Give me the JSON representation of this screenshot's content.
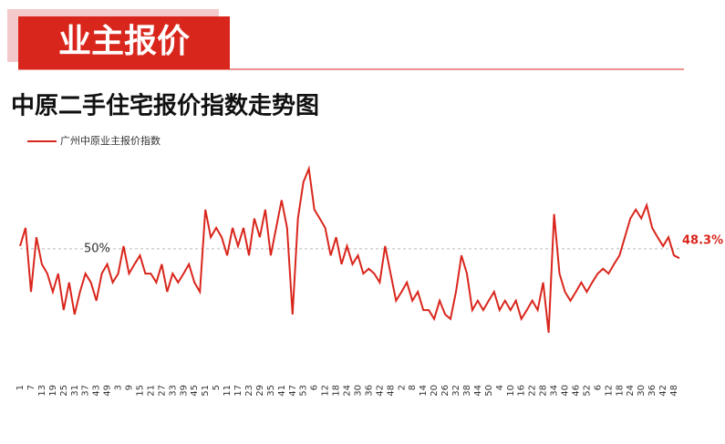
{
  "header": "业主报价",
  "chart_data": {
    "type": "line",
    "title": "中原二手住宅报价指数走势图",
    "series": [
      {
        "name": "广州中原业主报价指数",
        "color": "#d9261c",
        "values": [
          50.5,
          53.8,
          42.2,
          52.1,
          47.2,
          45.5,
          42.2,
          45.5,
          38.9,
          43.9,
          38.1,
          42.2,
          45.5,
          43.9,
          40.6,
          45.5,
          47.2,
          43.9,
          45.5,
          50.5,
          45.5,
          47.2,
          48.8,
          45.5,
          45.5,
          43.9,
          47.2,
          42.2,
          45.5,
          43.9,
          45.5,
          47.2,
          43.9,
          42.2,
          57.1,
          52.1,
          53.8,
          52.1,
          48.8,
          53.8,
          50.5,
          53.8,
          48.8,
          55.5,
          52.1,
          57.1,
          48.8,
          53.8,
          58.8,
          53.8,
          38.1,
          55.5,
          62.1,
          64.5,
          57.1,
          55.5,
          53.8,
          48.8,
          52.1,
          47.2,
          50.5,
          47.2,
          48.8,
          45.5,
          46.4,
          45.5,
          43.9,
          50.5,
          45.5,
          40.6,
          42.2,
          43.9,
          40.6,
          42.2,
          38.9,
          38.9,
          37.3,
          40.6,
          38.1,
          37.3,
          42.2,
          48.8,
          45.5,
          38.9,
          40.6,
          38.9,
          40.6,
          42.2,
          38.9,
          40.6,
          38.9,
          40.6,
          37.3,
          38.9,
          40.6,
          38.9,
          43.9,
          34.8,
          56.3,
          45.5,
          42.2,
          40.6,
          42.2,
          43.9,
          42.2,
          43.9,
          45.5,
          46.4,
          45.5,
          47.2,
          48.8,
          52.1,
          55.5,
          57.1,
          55.5,
          57.9,
          53.8,
          52.1,
          50.5,
          52.1,
          48.8,
          48.3
        ],
        "value_labels": [
          null,
          null,
          null,
          null,
          null,
          null,
          null,
          null,
          null,
          null,
          null,
          null,
          null,
          null,
          null,
          null,
          null,
          null,
          null,
          null,
          null,
          null,
          null,
          null,
          null,
          null,
          null,
          null,
          null,
          null,
          null,
          null,
          null,
          null,
          null,
          null,
          null,
          null,
          null,
          null,
          null,
          null,
          null,
          null,
          null,
          null,
          null,
          null,
          null,
          null,
          null,
          null,
          null,
          null,
          null,
          null,
          null,
          null,
          null,
          null,
          null,
          null,
          null,
          null,
          null,
          null,
          null,
          null,
          null,
          null,
          null,
          null,
          null,
          null,
          null,
          null,
          null,
          null,
          null,
          null,
          null,
          null,
          null,
          null,
          null,
          null,
          null,
          null,
          null,
          null,
          null,
          null,
          null,
          null,
          null,
          null,
          null,
          null,
          null,
          null,
          null,
          null,
          null,
          null,
          null,
          null,
          null,
          null,
          null,
          null,
          null,
          null,
          null,
          null,
          null,
          null,
          null,
          null,
          null,
          null,
          null,
          "48.3%"
        ]
      }
    ],
    "categories": [
      "1",
      null,
      "7",
      null,
      "13",
      null,
      "19",
      null,
      "25",
      null,
      "31",
      null,
      "37",
      null,
      "43",
      null,
      "49",
      null,
      "3",
      null,
      "9",
      null,
      "15",
      null,
      "21",
      null,
      "27",
      null,
      "33",
      null,
      "39",
      null,
      "45",
      null,
      "51",
      null,
      "5",
      null,
      "11",
      null,
      "17",
      null,
      "23",
      null,
      "29",
      null,
      "35",
      null,
      "41",
      null,
      "47",
      null,
      "53",
      null,
      "6",
      null,
      "12",
      null,
      "18",
      null,
      "24",
      null,
      "30",
      null,
      "36",
      null,
      "42",
      null,
      "48",
      null,
      "2",
      null,
      "8",
      null,
      "14",
      null,
      "20",
      null,
      "26",
      null,
      "32",
      null,
      "38",
      null,
      "44",
      null,
      "50",
      null,
      "4",
      null,
      "10",
      null,
      "16",
      null,
      "22",
      null,
      "28",
      null,
      "34",
      null,
      "40",
      null,
      "46",
      null,
      "52",
      null,
      "6",
      null,
      "12",
      null,
      "18",
      null,
      "24",
      null,
      "30",
      null,
      "36",
      null,
      "42",
      null,
      "48",
      null
    ],
    "ylim": [
      29,
      67
    ],
    "reference_line": {
      "value": 50,
      "label": "50%"
    }
  }
}
